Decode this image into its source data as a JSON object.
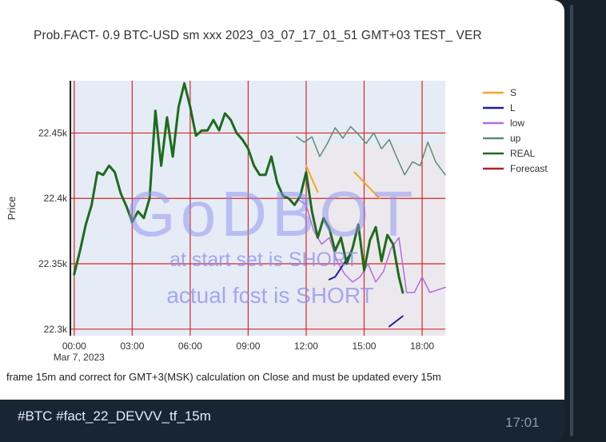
{
  "message": {
    "caption": "#BTC #fact_22_DEVVV_tf_15m",
    "time": "17:01"
  },
  "chart_data": {
    "type": "line",
    "title": "Prob.FACT- 0.9 BTC-USD sm xxx 2023_03_07_17_01_51 GMT+03 TEST_ VER",
    "ylabel": "Price",
    "xlabel": "",
    "x_ticks": [
      "00:00",
      "03:00",
      "06:00",
      "09:00",
      "12:00",
      "15:00",
      "18:00"
    ],
    "x_sub_label": "Mar 7, 2023",
    "y_ticks": [
      "22.3k",
      "22.35k",
      "22.4k",
      "22.45k"
    ],
    "ylim": [
      22295,
      22490
    ],
    "xlim": [
      -0.2,
      19.2
    ],
    "grid": true,
    "grid_color": "#d62728",
    "plot_bg": "#e5ecf6",
    "legend_position": "top-right",
    "footer_note": "frame 15m and correct for GMT+3(MSK) calculation on Close and must be updated every 15m",
    "watermark": {
      "main": "GoDBOT",
      "line1": "at start set is SHORT",
      "line2": "actual fcst is SHORT",
      "color": "#8b8ff0"
    },
    "series": [
      {
        "name": "S",
        "color": "#f5a623",
        "width": 2,
        "segments": [
          [
            [
              12.0,
              22.425
            ],
            [
              12.6,
              22.405
            ]
          ],
          [
            [
              14.5,
              22.42
            ],
            [
              15.8,
              22.4
            ]
          ]
        ]
      },
      {
        "name": "L",
        "color": "#1f1f9a",
        "width": 2,
        "segments": [
          [
            [
              13.2,
              22.338
            ],
            [
              13.5,
              22.34
            ],
            [
              14.3,
              22.358
            ]
          ],
          [
            [
              16.3,
              22.302
            ],
            [
              17.0,
              22.31
            ]
          ]
        ]
      },
      {
        "name": "low",
        "color": "#b36ae2",
        "width": 1.5,
        "x": [
          11.5,
          12.0,
          12.4,
          12.8,
          13.2,
          13.6,
          14.0,
          14.4,
          14.8,
          15.2,
          15.6,
          16.0,
          16.4,
          16.8,
          17.2,
          17.6,
          18.0,
          18.4,
          18.8,
          19.2
        ],
        "y": [
          22.4,
          22.395,
          22.375,
          22.365,
          22.37,
          22.352,
          22.342,
          22.336,
          22.34,
          22.35,
          22.336,
          22.344,
          22.362,
          22.37,
          22.328,
          22.328,
          22.34,
          22.328,
          22.33,
          22.332
        ]
      },
      {
        "name": "up",
        "color": "#5a8f70",
        "width": 1.5,
        "x": [
          11.5,
          11.9,
          12.3,
          12.7,
          13.1,
          13.5,
          13.9,
          14.3,
          14.7,
          15.1,
          15.5,
          15.9,
          16.3,
          16.7,
          17.1,
          17.5,
          17.9,
          18.3,
          18.7,
          19.2
        ],
        "y": [
          22.447,
          22.443,
          22.447,
          22.432,
          22.442,
          22.454,
          22.446,
          22.455,
          22.449,
          22.442,
          22.45,
          22.438,
          22.445,
          22.431,
          22.418,
          22.428,
          22.425,
          22.443,
          22.428,
          22.418
        ]
      },
      {
        "name": "REAL",
        "color": "#1e6b1e",
        "width": 3,
        "x": [
          0.0,
          0.3,
          0.6,
          0.9,
          1.2,
          1.5,
          1.8,
          2.1,
          2.4,
          2.7,
          3.0,
          3.3,
          3.6,
          3.9,
          4.2,
          4.5,
          4.8,
          5.1,
          5.4,
          5.7,
          6.0,
          6.3,
          6.6,
          6.9,
          7.2,
          7.5,
          7.8,
          8.1,
          8.4,
          8.7,
          9.0,
          9.3,
          9.6,
          9.9,
          10.2,
          10.5,
          10.8,
          11.1,
          11.4,
          11.7,
          12.0,
          12.3,
          12.6,
          12.9,
          13.2,
          13.5,
          13.8,
          14.1,
          14.4,
          14.7,
          15.0,
          15.3,
          15.6,
          15.9,
          16.2,
          16.5,
          16.8,
          17.0
        ],
        "y": [
          22.342,
          22.36,
          22.38,
          22.395,
          22.42,
          22.418,
          22.425,
          22.42,
          22.404,
          22.394,
          22.382,
          22.39,
          22.385,
          22.4,
          22.467,
          22.425,
          22.462,
          22.432,
          22.47,
          22.488,
          22.47,
          22.448,
          22.452,
          22.452,
          22.46,
          22.452,
          22.465,
          22.46,
          22.45,
          22.445,
          22.438,
          22.425,
          22.418,
          22.418,
          22.432,
          22.412,
          22.402,
          22.4,
          22.395,
          22.402,
          22.42,
          22.39,
          22.37,
          22.385,
          22.377,
          22.36,
          22.37,
          22.35,
          22.362,
          22.38,
          22.345,
          22.368,
          22.378,
          22.352,
          22.372,
          22.365,
          22.34,
          22.328
        ]
      },
      {
        "name": "Forecast",
        "color": "#b22222",
        "width": 2,
        "segments": []
      }
    ]
  }
}
